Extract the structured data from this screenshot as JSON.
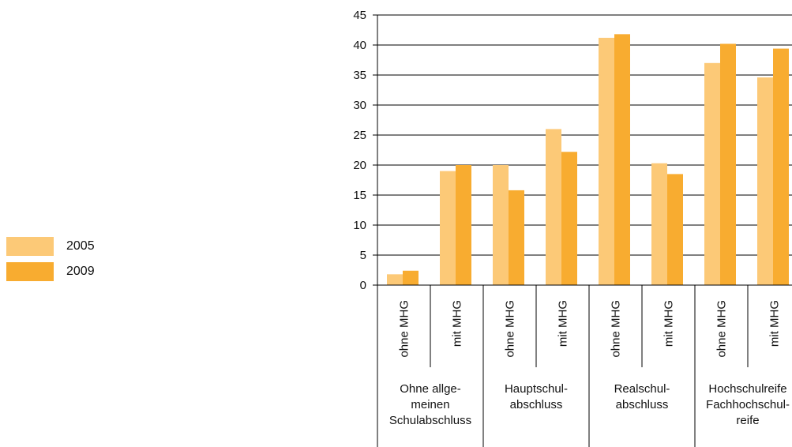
{
  "chart_data": {
    "type": "bar",
    "ylim": [
      0,
      45
    ],
    "yticks": [
      "0",
      "5",
      "10",
      "15",
      "20",
      "25",
      "30",
      "35",
      "40",
      "45"
    ],
    "categories": [
      "ohne MHG",
      "mit MHG",
      "ohne MHG",
      "mit MHG",
      "ohne MHG",
      "mit MHG",
      "ohne MHG",
      "mit MHG"
    ],
    "groups": [
      {
        "lines": [
          "Ohne allge-",
          "meinen",
          "Schulabschluss"
        ]
      },
      {
        "lines": [
          "Hauptschul-",
          "abschluss"
        ]
      },
      {
        "lines": [
          "Realschul-",
          "abschluss"
        ]
      },
      {
        "lines": [
          "Hochschulreife",
          "Fachhochschul-",
          "reife"
        ]
      }
    ],
    "series": [
      {
        "name": "2005",
        "color": "#FCC977",
        "values": [
          1.8,
          19.0,
          20.0,
          26.0,
          41.2,
          20.3,
          37.0,
          34.6
        ]
      },
      {
        "name": "2009",
        "color": "#F8AC30",
        "values": [
          2.4,
          20.0,
          15.8,
          22.2,
          41.8,
          18.5,
          40.2,
          39.4
        ]
      }
    ],
    "grid": true,
    "legend_position": "left"
  }
}
